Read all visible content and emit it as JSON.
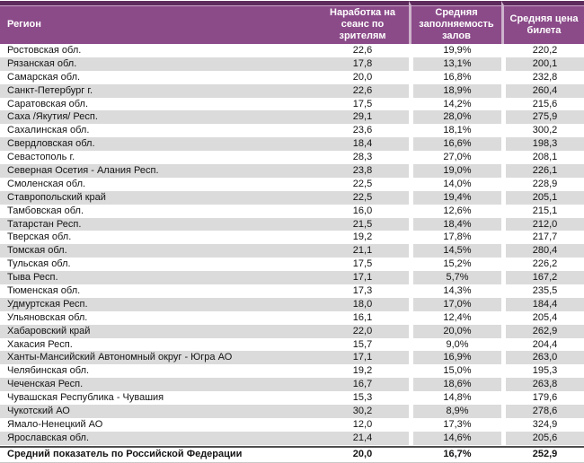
{
  "table": {
    "columns": [
      "Регион",
      "Наработка на сеанс по зрителям",
      "Средняя заполняемость залов",
      "Средняя цена билета"
    ],
    "rows": [
      [
        "Ростовская обл.",
        "22,6",
        "19,9%",
        "220,2"
      ],
      [
        "Рязанская обл.",
        "17,8",
        "13,1%",
        "200,1"
      ],
      [
        "Самарская обл.",
        "20,0",
        "16,8%",
        "232,8"
      ],
      [
        "Санкт-Петербург г.",
        "22,6",
        "18,9%",
        "260,4"
      ],
      [
        "Саратовская обл.",
        "17,5",
        "14,2%",
        "215,6"
      ],
      [
        "Саха /Якутия/ Респ.",
        "29,1",
        "28,0%",
        "275,9"
      ],
      [
        "Сахалинская обл.",
        "23,6",
        "18,1%",
        "300,2"
      ],
      [
        "Свердловская обл.",
        "18,4",
        "16,6%",
        "198,3"
      ],
      [
        "Севастополь г.",
        "28,3",
        "27,0%",
        "208,1"
      ],
      [
        "Северная Осетия - Алания Респ.",
        "23,8",
        "19,0%",
        "226,1"
      ],
      [
        "Смоленская обл.",
        "22,5",
        "14,0%",
        "228,9"
      ],
      [
        "Ставропольский край",
        "22,5",
        "19,4%",
        "205,1"
      ],
      [
        "Тамбовская обл.",
        "16,0",
        "12,6%",
        "215,1"
      ],
      [
        "Татарстан Респ.",
        "21,5",
        "18,4%",
        "212,0"
      ],
      [
        "Тверская обл.",
        "19,2",
        "17,8%",
        "217,7"
      ],
      [
        "Томская обл.",
        "21,1",
        "14,5%",
        "280,4"
      ],
      [
        "Тульская обл.",
        "17,5",
        "15,2%",
        "226,2"
      ],
      [
        "Тыва Респ.",
        "17,1",
        "5,7%",
        "167,2"
      ],
      [
        "Тюменская обл.",
        "17,3",
        "14,3%",
        "235,5"
      ],
      [
        "Удмуртская Респ.",
        "18,0",
        "17,0%",
        "184,4"
      ],
      [
        "Ульяновская обл.",
        "16,1",
        "12,4%",
        "205,4"
      ],
      [
        "Хабаровский край",
        "22,0",
        "20,0%",
        "262,9"
      ],
      [
        "Хакасия Респ.",
        "15,7",
        "9,0%",
        "204,4"
      ],
      [
        "Ханты-Мансийский Автономный округ - Югра АО",
        "17,1",
        "16,9%",
        "263,0"
      ],
      [
        "Челябинская обл.",
        "19,2",
        "15,0%",
        "195,3"
      ],
      [
        "Чеченская Респ.",
        "16,7",
        "18,6%",
        "263,8"
      ],
      [
        "Чувашская Республика - Чувашия",
        "15,3",
        "14,8%",
        "179,6"
      ],
      [
        "Чукотский АО",
        "30,2",
        "8,9%",
        "278,6"
      ],
      [
        "Ямало-Ненецкий АО",
        "12,0",
        "17,3%",
        "324,9"
      ],
      [
        "Ярославская обл.",
        "21,4",
        "14,6%",
        "205,6"
      ]
    ],
    "total_row": [
      "Средний показатель по Российской Федерации",
      "20,0",
      "16,7%",
      "252,9"
    ],
    "colors": {
      "header_bg": "#8B4B89",
      "header_top_bar": "#5E2C5C",
      "header_separator": "#CDB2CB",
      "stripe_bg": "#DBDBDB"
    }
  }
}
